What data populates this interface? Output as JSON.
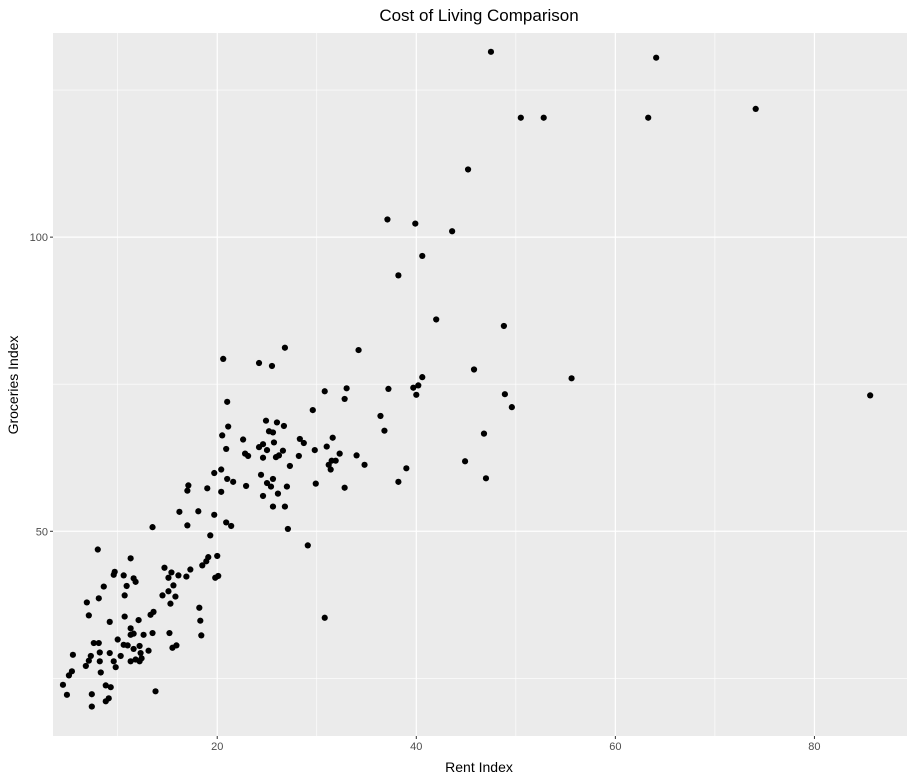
{
  "chart_data": {
    "type": "scatter",
    "title": "Cost of Living Comparison",
    "xlabel": "Rent Index",
    "ylabel": "Groceries Index",
    "xlim": [
      3.5,
      89.3
    ],
    "ylim": [
      15.2,
      134.7
    ],
    "xticks": [
      20,
      40,
      60,
      80
    ],
    "yticks": [
      50,
      100
    ],
    "grid": true,
    "legend": "none",
    "colors": {
      "panel": "#ebebeb",
      "grid": "#ffffff",
      "point": "#000000",
      "tick_text": "#4d4d4d",
      "tick_mark": "#333333"
    },
    "points": [
      [
        47.5,
        131.5
      ],
      [
        64.1,
        130.5
      ],
      [
        74.1,
        121.8
      ],
      [
        50.5,
        120.3
      ],
      [
        52.8,
        120.3
      ],
      [
        63.3,
        120.3
      ],
      [
        45.2,
        111.5
      ],
      [
        37.1,
        103.0
      ],
      [
        39.9,
        102.3
      ],
      [
        43.6,
        101.0
      ],
      [
        40.6,
        96.8
      ],
      [
        38.2,
        93.5
      ],
      [
        42.0,
        86.0
      ],
      [
        48.8,
        84.9
      ],
      [
        20.6,
        79.3
      ],
      [
        26.8,
        81.2
      ],
      [
        24.2,
        78.6
      ],
      [
        25.5,
        78.1
      ],
      [
        34.2,
        80.8
      ],
      [
        45.8,
        77.5
      ],
      [
        55.6,
        76.0
      ],
      [
        40.6,
        76.2
      ],
      [
        37.2,
        74.2
      ],
      [
        39.7,
        74.4
      ],
      [
        40.2,
        74.8
      ],
      [
        33.0,
        74.3
      ],
      [
        30.8,
        73.8
      ],
      [
        48.9,
        73.3
      ],
      [
        40.0,
        73.2
      ],
      [
        85.6,
        73.1
      ],
      [
        32.8,
        72.5
      ],
      [
        49.6,
        71.1
      ],
      [
        21.0,
        72.0
      ],
      [
        29.6,
        70.6
      ],
      [
        36.4,
        69.6
      ],
      [
        24.9,
        68.8
      ],
      [
        26.0,
        68.5
      ],
      [
        26.7,
        67.9
      ],
      [
        21.1,
        67.8
      ],
      [
        25.2,
        67.0
      ],
      [
        25.6,
        66.8
      ],
      [
        36.8,
        67.1
      ],
      [
        46.8,
        66.6
      ],
      [
        20.5,
        66.3
      ],
      [
        31.6,
        65.9
      ],
      [
        22.6,
        65.6
      ],
      [
        28.3,
        65.7
      ],
      [
        25.7,
        65.1
      ],
      [
        28.7,
        65.0
      ],
      [
        24.6,
        64.8
      ],
      [
        24.2,
        64.3
      ],
      [
        31.0,
        64.4
      ],
      [
        20.9,
        64.0
      ],
      [
        25.0,
        63.8
      ],
      [
        29.8,
        63.8
      ],
      [
        26.6,
        63.7
      ],
      [
        22.8,
        63.2
      ],
      [
        32.3,
        63.2
      ],
      [
        23.1,
        62.8
      ],
      [
        26.2,
        62.9
      ],
      [
        28.2,
        62.8
      ],
      [
        25.9,
        62.6
      ],
      [
        34.0,
        62.9
      ],
      [
        24.6,
        62.5
      ],
      [
        31.5,
        62.0
      ],
      [
        31.9,
        62.0
      ],
      [
        31.2,
        61.3
      ],
      [
        44.9,
        61.9
      ],
      [
        34.8,
        61.3
      ],
      [
        27.3,
        61.1
      ],
      [
        39.0,
        60.7
      ],
      [
        31.4,
        60.5
      ],
      [
        19.7,
        59.9
      ],
      [
        20.4,
        60.5
      ],
      [
        24.4,
        59.6
      ],
      [
        21.0,
        58.9
      ],
      [
        25.6,
        58.9
      ],
      [
        25.0,
        58.2
      ],
      [
        21.6,
        58.4
      ],
      [
        25.4,
        57.6
      ],
      [
        29.9,
        58.1
      ],
      [
        47.0,
        59.0
      ],
      [
        38.2,
        58.4
      ],
      [
        17.1,
        57.8
      ],
      [
        17.0,
        56.9
      ],
      [
        19.0,
        57.3
      ],
      [
        22.9,
        57.7
      ],
      [
        27.0,
        57.6
      ],
      [
        32.8,
        57.4
      ],
      [
        26.1,
        56.4
      ],
      [
        20.4,
        56.7
      ],
      [
        24.6,
        56.0
      ],
      [
        16.2,
        53.3
      ],
      [
        18.1,
        53.4
      ],
      [
        25.6,
        54.2
      ],
      [
        26.8,
        54.2
      ],
      [
        19.7,
        52.8
      ],
      [
        20.9,
        51.5
      ],
      [
        17.0,
        51.0
      ],
      [
        21.4,
        50.9
      ],
      [
        13.5,
        50.7
      ],
      [
        27.1,
        50.4
      ],
      [
        19.3,
        49.3
      ],
      [
        29.1,
        47.6
      ],
      [
        8.0,
        46.9
      ],
      [
        19.1,
        45.6
      ],
      [
        20.0,
        45.8
      ],
      [
        11.3,
        45.4
      ],
      [
        18.9,
        44.9
      ],
      [
        18.5,
        44.2
      ],
      [
        14.7,
        43.8
      ],
      [
        17.3,
        43.5
      ],
      [
        9.7,
        43.1
      ],
      [
        15.4,
        43.0
      ],
      [
        9.6,
        42.6
      ],
      [
        16.1,
        42.5
      ],
      [
        10.6,
        42.5
      ],
      [
        16.9,
        42.3
      ],
      [
        15.1,
        42.1
      ],
      [
        20.1,
        42.4
      ],
      [
        19.8,
        42.1
      ],
      [
        11.6,
        42.0
      ],
      [
        11.8,
        41.4
      ],
      [
        10.9,
        40.7
      ],
      [
        15.6,
        40.8
      ],
      [
        8.6,
        40.6
      ],
      [
        15.1,
        39.8
      ],
      [
        10.7,
        39.1
      ],
      [
        14.5,
        39.1
      ],
      [
        15.8,
        38.9
      ],
      [
        8.1,
        38.6
      ],
      [
        15.3,
        37.7
      ],
      [
        6.9,
        37.9
      ],
      [
        18.2,
        37.0
      ],
      [
        13.6,
        36.3
      ],
      [
        13.3,
        35.8
      ],
      [
        10.7,
        35.5
      ],
      [
        7.1,
        35.7
      ],
      [
        12.1,
        34.9
      ],
      [
        18.3,
        34.8
      ],
      [
        30.8,
        35.3
      ],
      [
        9.2,
        34.6
      ],
      [
        11.3,
        33.5
      ],
      [
        11.6,
        32.6
      ],
      [
        11.3,
        32.4
      ],
      [
        13.5,
        32.7
      ],
      [
        15.2,
        32.7
      ],
      [
        12.6,
        32.4
      ],
      [
        18.4,
        32.3
      ],
      [
        10.0,
        31.6
      ],
      [
        7.6,
        31.0
      ],
      [
        8.1,
        31.0
      ],
      [
        10.6,
        30.7
      ],
      [
        11.0,
        30.6
      ],
      [
        12.2,
        30.5
      ],
      [
        15.9,
        30.6
      ],
      [
        15.5,
        30.2
      ],
      [
        11.6,
        30.0
      ],
      [
        13.1,
        29.7
      ],
      [
        12.3,
        29.3
      ],
      [
        8.2,
        29.4
      ],
      [
        9.2,
        29.3
      ],
      [
        5.5,
        29.0
      ],
      [
        7.3,
        28.8
      ],
      [
        10.3,
        28.8
      ],
      [
        11.8,
        28.2
      ],
      [
        12.4,
        28.4
      ],
      [
        7.1,
        28.0
      ],
      [
        8.2,
        27.9
      ],
      [
        9.6,
        27.9
      ],
      [
        11.3,
        27.9
      ],
      [
        12.2,
        27.9
      ],
      [
        6.8,
        27.1
      ],
      [
        9.8,
        26.9
      ],
      [
        5.4,
        26.2
      ],
      [
        8.3,
        26.0
      ],
      [
        5.1,
        25.5
      ],
      [
        8.8,
        23.8
      ],
      [
        4.5,
        23.9
      ],
      [
        9.3,
        23.5
      ],
      [
        13.8,
        22.8
      ],
      [
        4.9,
        22.2
      ],
      [
        7.4,
        22.3
      ],
      [
        9.1,
        21.6
      ],
      [
        8.8,
        21.1
      ],
      [
        7.4,
        20.2
      ]
    ]
  }
}
